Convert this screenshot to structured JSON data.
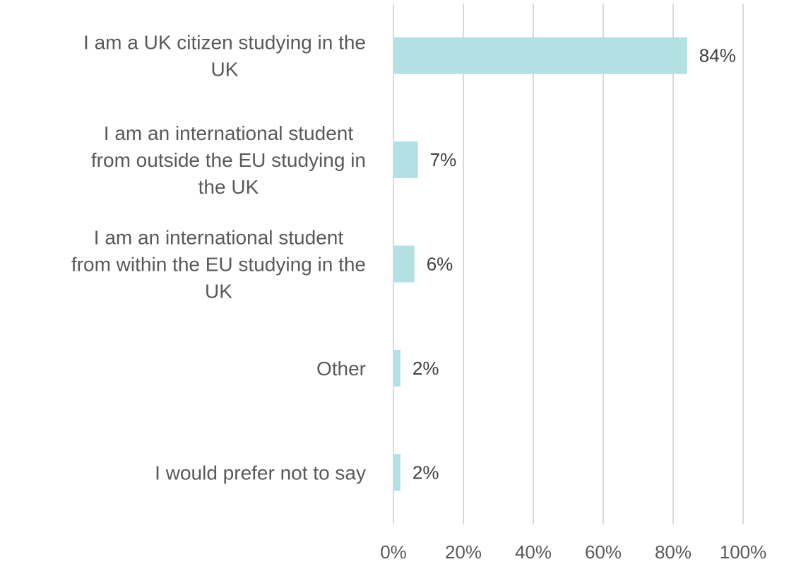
{
  "chart_data": {
    "type": "bar",
    "orientation": "horizontal",
    "categories": [
      [
        "I am a UK citizen studying in the",
        "UK"
      ],
      [
        "I am an international student",
        "from outside the EU studying in",
        "the UK"
      ],
      [
        "I am an international student",
        "from within the EU studying in the",
        "UK"
      ],
      [
        "Other"
      ],
      [
        "I would prefer not to say"
      ]
    ],
    "values": [
      84,
      7,
      6,
      2,
      2
    ],
    "value_labels": [
      "84%",
      "7%",
      "6%",
      "2%",
      "2%"
    ],
    "xlim": [
      0,
      100
    ],
    "xticks": [
      0,
      20,
      40,
      60,
      80,
      100
    ],
    "xtick_labels": [
      "0%",
      "20%",
      "40%",
      "60%",
      "80%",
      "100%"
    ],
    "grid": "vertical",
    "bar_color": "#b3e0e3",
    "grid_color": "#d9d9d9",
    "title": "",
    "xlabel": "",
    "ylabel": ""
  }
}
